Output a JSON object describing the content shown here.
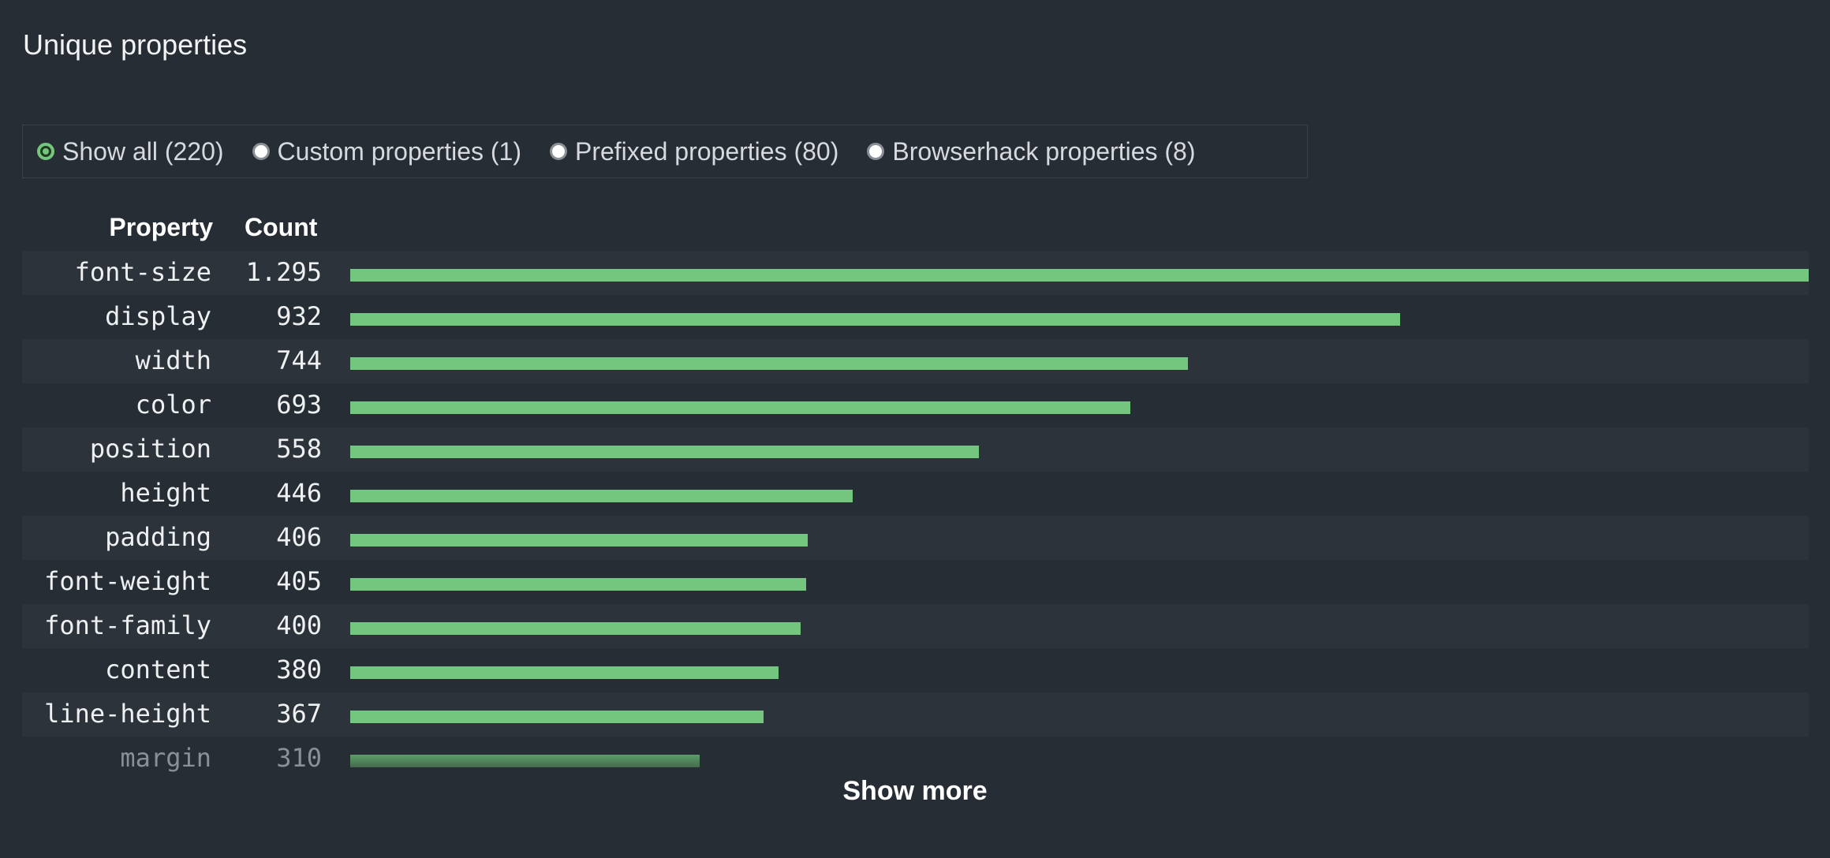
{
  "title": "Unique properties",
  "filters": [
    {
      "label": "Show all (220)",
      "selected": true
    },
    {
      "label": "Custom properties (1)",
      "selected": false
    },
    {
      "label": "Prefixed properties (80)",
      "selected": false
    },
    {
      "label": "Browserhack properties (8)",
      "selected": false
    }
  ],
  "columns": {
    "property": "Property",
    "count": "Count"
  },
  "show_more": "Show more",
  "colors": {
    "bar": "#74c67f",
    "background": "#272d35"
  },
  "chart_data": {
    "type": "bar",
    "orientation": "horizontal",
    "categories": [
      "font-size",
      "display",
      "width",
      "color",
      "position",
      "height",
      "padding",
      "font-weight",
      "font-family",
      "content",
      "line-height",
      "margin"
    ],
    "values": [
      1295,
      932,
      744,
      693,
      558,
      446,
      406,
      405,
      400,
      380,
      367,
      310
    ],
    "value_labels": [
      "1.295",
      "932",
      "744",
      "693",
      "558",
      "446",
      "406",
      "405",
      "400",
      "380",
      "367",
      "310"
    ]
  }
}
